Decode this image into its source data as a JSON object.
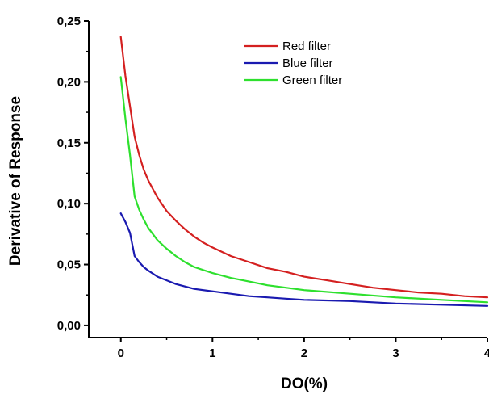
{
  "chart_data": {
    "type": "line",
    "xlabel": "DO(%)",
    "ylabel": "Derivative of Response",
    "xlim": [
      -0.35,
      4.0
    ],
    "ylim": [
      -0.01,
      0.25
    ],
    "x_ticks": [
      {
        "value": 0,
        "label": "0"
      },
      {
        "value": 1,
        "label": "1"
      },
      {
        "value": 2,
        "label": "2"
      },
      {
        "value": 3,
        "label": "3"
      },
      {
        "value": 4,
        "label": "4"
      }
    ],
    "y_ticks": [
      {
        "value": 0.0,
        "label": "0,00"
      },
      {
        "value": 0.05,
        "label": "0,05"
      },
      {
        "value": 0.1,
        "label": "0,10"
      },
      {
        "value": 0.15,
        "label": "0,15"
      },
      {
        "value": 0.2,
        "label": "0,20"
      },
      {
        "value": 0.25,
        "label": "0,25"
      }
    ],
    "legend_position": "top-center",
    "grid": false,
    "series": [
      {
        "name": "Red filter",
        "color": "#d42020",
        "points": [
          [
            0.0,
            0.237
          ],
          [
            0.05,
            0.205
          ],
          [
            0.1,
            0.18
          ],
          [
            0.15,
            0.155
          ],
          [
            0.2,
            0.14
          ],
          [
            0.25,
            0.128
          ],
          [
            0.3,
            0.119
          ],
          [
            0.4,
            0.105
          ],
          [
            0.5,
            0.094
          ],
          [
            0.6,
            0.086
          ],
          [
            0.7,
            0.079
          ],
          [
            0.8,
            0.073
          ],
          [
            0.9,
            0.068
          ],
          [
            1.0,
            0.064
          ],
          [
            1.2,
            0.057
          ],
          [
            1.4,
            0.052
          ],
          [
            1.6,
            0.047
          ],
          [
            1.8,
            0.044
          ],
          [
            2.0,
            0.04
          ],
          [
            2.25,
            0.037
          ],
          [
            2.5,
            0.034
          ],
          [
            2.75,
            0.031
          ],
          [
            3.0,
            0.029
          ],
          [
            3.25,
            0.027
          ],
          [
            3.5,
            0.026
          ],
          [
            3.75,
            0.024
          ],
          [
            4.0,
            0.023
          ]
        ]
      },
      {
        "name": "Blue filter",
        "color": "#1a1ab0",
        "points": [
          [
            0.0,
            0.092
          ],
          [
            0.05,
            0.085
          ],
          [
            0.1,
            0.076
          ],
          [
            0.15,
            0.057
          ],
          [
            0.2,
            0.052
          ],
          [
            0.25,
            0.048
          ],
          [
            0.3,
            0.045
          ],
          [
            0.4,
            0.04
          ],
          [
            0.5,
            0.037
          ],
          [
            0.6,
            0.034
          ],
          [
            0.7,
            0.032
          ],
          [
            0.8,
            0.03
          ],
          [
            1.0,
            0.028
          ],
          [
            1.2,
            0.026
          ],
          [
            1.4,
            0.024
          ],
          [
            1.6,
            0.023
          ],
          [
            1.8,
            0.022
          ],
          [
            2.0,
            0.021
          ],
          [
            2.5,
            0.02
          ],
          [
            3.0,
            0.018
          ],
          [
            3.5,
            0.017
          ],
          [
            4.0,
            0.016
          ]
        ]
      },
      {
        "name": "Green filter",
        "color": "#2ee02e",
        "points": [
          [
            0.0,
            0.204
          ],
          [
            0.05,
            0.17
          ],
          [
            0.1,
            0.14
          ],
          [
            0.15,
            0.106
          ],
          [
            0.2,
            0.095
          ],
          [
            0.25,
            0.087
          ],
          [
            0.3,
            0.08
          ],
          [
            0.4,
            0.07
          ],
          [
            0.5,
            0.063
          ],
          [
            0.6,
            0.057
          ],
          [
            0.7,
            0.052
          ],
          [
            0.8,
            0.048
          ],
          [
            1.0,
            0.043
          ],
          [
            1.2,
            0.039
          ],
          [
            1.4,
            0.036
          ],
          [
            1.6,
            0.033
          ],
          [
            1.8,
            0.031
          ],
          [
            2.0,
            0.029
          ],
          [
            2.5,
            0.026
          ],
          [
            3.0,
            0.023
          ],
          [
            3.5,
            0.021
          ],
          [
            4.0,
            0.019
          ]
        ]
      }
    ]
  }
}
